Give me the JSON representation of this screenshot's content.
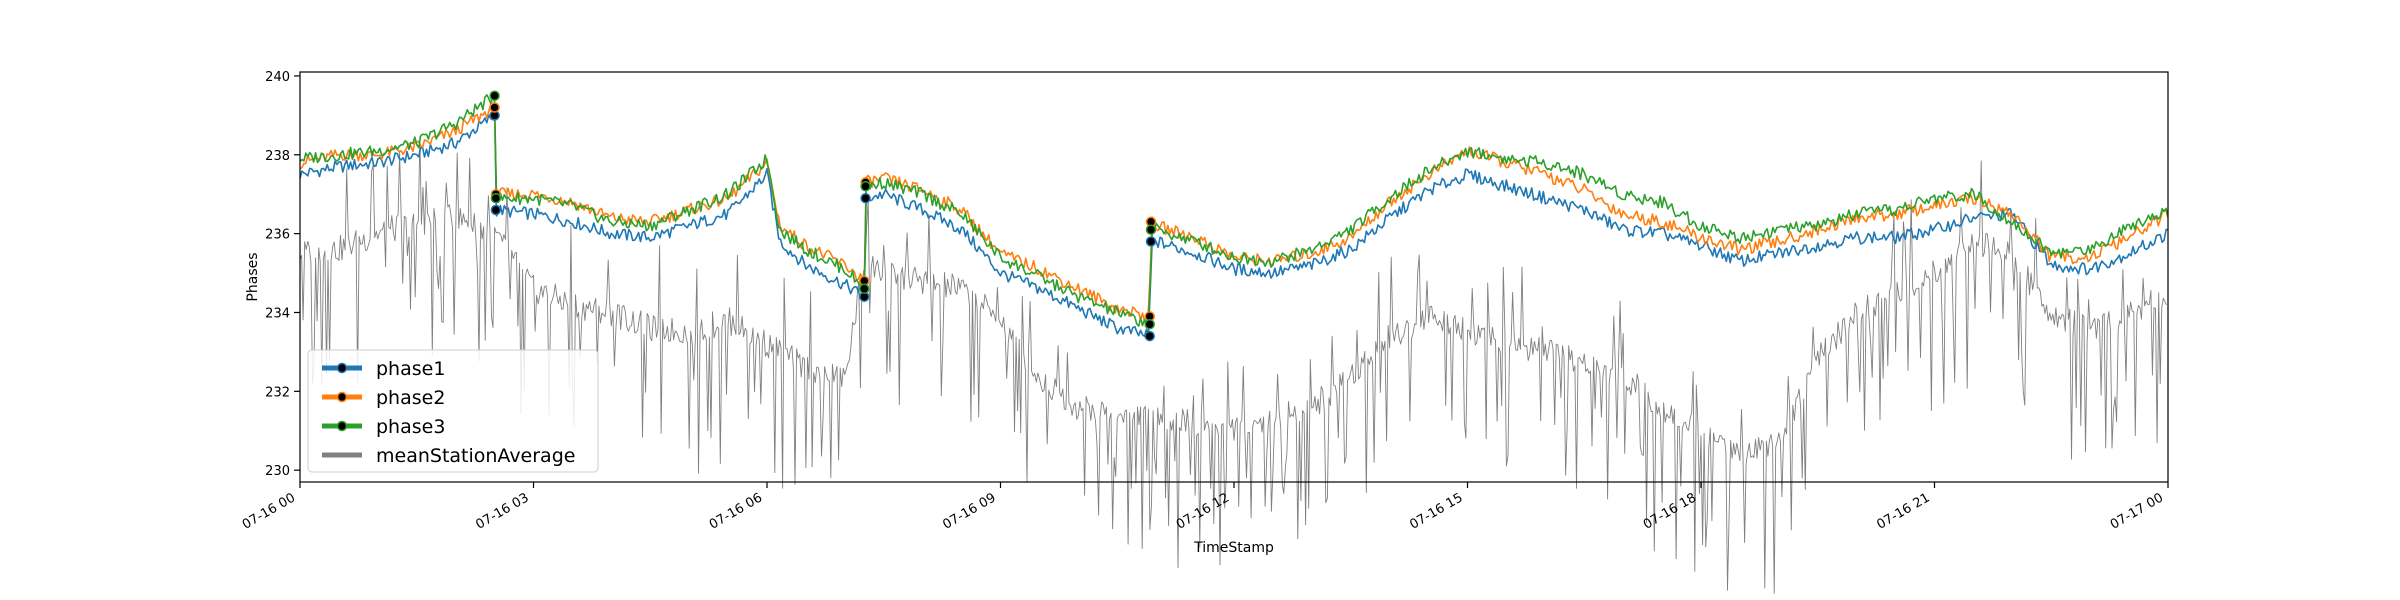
{
  "chart_data": {
    "type": "line",
    "title": "",
    "xlabel": "TimeStamp",
    "ylabel": "Phases",
    "xlim": [
      "07-16 00:00",
      "07-17 00:00"
    ],
    "ylim": [
      229.7,
      240.1
    ],
    "grid": false,
    "legend_position": "lower-left",
    "x_ticks": [
      "07-16 00",
      "07-16 03",
      "07-16 06",
      "07-16 09",
      "07-16 12",
      "07-16 15",
      "07-16 18",
      "07-16 21",
      "07-17 00"
    ],
    "y_ticks": [
      "230",
      "232",
      "234",
      "236",
      "238",
      "240"
    ],
    "series": [
      {
        "name": "phase1",
        "color": "#1f77b4",
        "x": [
          "07-16 00:00",
          "07-16 00:30",
          "07-16 01:00",
          "07-16 01:30",
          "07-16 02:00",
          "07-16 02:30",
          "07-16 02:31",
          "07-16 03:00",
          "07-16 03:30",
          "07-16 04:00",
          "07-16 04:30",
          "07-16 05:00",
          "07-16 05:30",
          "07-16 06:00",
          "07-16 06:10",
          "07-16 06:30",
          "07-16 07:00",
          "07-16 07:15",
          "07-16 07:16",
          "07-16 07:30",
          "07-16 08:00",
          "07-16 08:30",
          "07-16 09:00",
          "07-16 09:30",
          "07-16 10:00",
          "07-16 10:30",
          "07-16 10:55",
          "07-16 10:56",
          "07-16 11:00",
          "07-16 11:30",
          "07-16 12:00",
          "07-16 12:30",
          "07-16 13:00",
          "07-16 13:30",
          "07-16 14:00",
          "07-16 14:30",
          "07-16 15:00",
          "07-16 15:30",
          "07-16 16:00",
          "07-16 16:30",
          "07-16 17:00",
          "07-16 17:30",
          "07-16 18:00",
          "07-16 18:30",
          "07-16 19:00",
          "07-16 19:30",
          "07-16 20:00",
          "07-16 20:30",
          "07-16 21:00",
          "07-16 21:30",
          "07-16 22:00",
          "07-16 22:30",
          "07-16 23:00",
          "07-16 23:30",
          "07-17 00:00"
        ],
        "values": [
          237.5,
          237.7,
          237.8,
          238.0,
          238.3,
          239.0,
          236.6,
          236.5,
          236.3,
          236.0,
          235.9,
          236.2,
          236.5,
          237.5,
          235.8,
          235.2,
          234.7,
          234.4,
          236.9,
          237.0,
          236.6,
          236.1,
          235.0,
          234.6,
          234.1,
          233.6,
          233.4,
          235.8,
          235.8,
          235.5,
          235.1,
          235.0,
          235.2,
          235.6,
          236.4,
          237.1,
          237.5,
          237.2,
          236.9,
          236.6,
          236.1,
          236.0,
          235.7,
          235.3,
          235.5,
          235.7,
          235.9,
          235.9,
          236.1,
          236.4,
          236.5,
          235.2,
          235.1,
          235.5,
          236.0
        ]
      },
      {
        "name": "phase2",
        "color": "#ff7f0e",
        "x": [
          "07-16 00:00",
          "07-16 00:30",
          "07-16 01:00",
          "07-16 01:30",
          "07-16 02:00",
          "07-16 02:30",
          "07-16 02:31",
          "07-16 03:00",
          "07-16 03:30",
          "07-16 04:00",
          "07-16 04:30",
          "07-16 05:00",
          "07-16 05:30",
          "07-16 06:00",
          "07-16 06:10",
          "07-16 06:30",
          "07-16 07:00",
          "07-16 07:15",
          "07-16 07:16",
          "07-16 07:30",
          "07-16 08:00",
          "07-16 08:30",
          "07-16 09:00",
          "07-16 09:30",
          "07-16 10:00",
          "07-16 10:30",
          "07-16 10:55",
          "07-16 10:56",
          "07-16 11:00",
          "07-16 11:30",
          "07-16 12:00",
          "07-16 12:30",
          "07-16 13:00",
          "07-16 13:30",
          "07-16 14:00",
          "07-16 14:30",
          "07-16 15:00",
          "07-16 15:30",
          "07-16 16:00",
          "07-16 16:30",
          "07-16 17:00",
          "07-16 17:30",
          "07-16 18:00",
          "07-16 18:30",
          "07-16 19:00",
          "07-16 19:30",
          "07-16 20:00",
          "07-16 20:30",
          "07-16 21:00",
          "07-16 21:30",
          "07-16 22:00",
          "07-16 22:30",
          "07-16 23:00",
          "07-16 23:30",
          "07-17 00:00"
        ],
        "values": [
          237.8,
          238.0,
          238.0,
          238.2,
          238.6,
          239.2,
          237.0,
          237.0,
          236.8,
          236.4,
          236.3,
          236.6,
          236.9,
          237.8,
          236.2,
          235.7,
          235.2,
          234.8,
          237.3,
          237.4,
          237.1,
          236.6,
          235.5,
          235.1,
          234.6,
          234.1,
          233.9,
          236.3,
          236.2,
          235.9,
          235.4,
          235.3,
          235.5,
          235.9,
          236.8,
          237.5,
          238.1,
          237.8,
          237.5,
          237.1,
          236.5,
          236.3,
          235.9,
          235.6,
          235.8,
          236.1,
          236.4,
          236.5,
          236.7,
          236.9,
          236.5,
          235.4,
          235.4,
          235.9,
          236.5
        ]
      },
      {
        "name": "phase3",
        "color": "#2ca02c",
        "x": [
          "07-16 00:00",
          "07-16 00:30",
          "07-16 01:00",
          "07-16 01:30",
          "07-16 02:00",
          "07-16 02:30",
          "07-16 02:31",
          "07-16 03:00",
          "07-16 03:30",
          "07-16 04:00",
          "07-16 04:30",
          "07-16 05:00",
          "07-16 05:30",
          "07-16 06:00",
          "07-16 06:10",
          "07-16 06:30",
          "07-16 07:00",
          "07-16 07:15",
          "07-16 07:16",
          "07-16 07:30",
          "07-16 08:00",
          "07-16 08:30",
          "07-16 09:00",
          "07-16 09:30",
          "07-16 10:00",
          "07-16 10:30",
          "07-16 10:55",
          "07-16 10:56",
          "07-16 11:00",
          "07-16 11:30",
          "07-16 12:00",
          "07-16 12:30",
          "07-16 13:00",
          "07-16 13:30",
          "07-16 14:00",
          "07-16 14:30",
          "07-16 15:00",
          "07-16 15:30",
          "07-16 16:00",
          "07-16 16:30",
          "07-16 17:00",
          "07-16 17:30",
          "07-16 18:00",
          "07-16 18:30",
          "07-16 19:00",
          "07-16 19:30",
          "07-16 20:00",
          "07-16 20:30",
          "07-16 21:00",
          "07-16 21:30",
          "07-16 22:00",
          "07-16 22:30",
          "07-16 23:00",
          "07-16 23:30",
          "07-17 00:00"
        ],
        "values": [
          237.9,
          238.0,
          238.1,
          238.3,
          238.8,
          239.5,
          236.9,
          236.9,
          236.7,
          236.3,
          236.2,
          236.6,
          237.0,
          237.9,
          236.1,
          235.6,
          235.1,
          234.6,
          237.2,
          237.3,
          237.0,
          236.5,
          235.4,
          234.9,
          234.4,
          234.0,
          233.7,
          236.1,
          236.1,
          235.8,
          235.4,
          235.3,
          235.6,
          236.1,
          236.9,
          237.6,
          238.1,
          237.9,
          237.8,
          237.5,
          237.0,
          236.8,
          236.2,
          235.9,
          236.1,
          236.2,
          236.5,
          236.6,
          236.9,
          237.0,
          236.3,
          235.5,
          235.6,
          236.2,
          236.6
        ]
      },
      {
        "name": "meanStationAverage",
        "color": "#808080",
        "x": [
          "07-16 00:00",
          "07-16 00:30",
          "07-16 01:00",
          "07-16 01:30",
          "07-16 02:00",
          "07-16 02:30",
          "07-16 03:00",
          "07-16 03:30",
          "07-16 04:00",
          "07-16 04:30",
          "07-16 05:00",
          "07-16 05:30",
          "07-16 06:00",
          "07-16 06:30",
          "07-16 07:00",
          "07-16 07:15",
          "07-16 07:30",
          "07-16 08:00",
          "07-16 08:30",
          "07-16 09:00",
          "07-16 09:30",
          "07-16 10:00",
          "07-16 10:30",
          "07-16 11:00",
          "07-16 11:30",
          "07-16 12:00",
          "07-16 12:30",
          "07-16 13:00",
          "07-16 13:30",
          "07-16 14:00",
          "07-16 14:30",
          "07-16 15:00",
          "07-16 15:30",
          "07-16 16:00",
          "07-16 16:30",
          "07-16 17:00",
          "07-16 17:30",
          "07-16 18:00",
          "07-16 18:30",
          "07-16 19:00",
          "07-16 19:30",
          "07-16 20:00",
          "07-16 20:30",
          "07-16 21:00",
          "07-16 21:30",
          "07-16 22:00",
          "07-16 22:30",
          "07-16 23:00",
          "07-16 23:30",
          "07-17 00:00"
        ],
        "values": [
          235.5,
          235.6,
          236.0,
          236.3,
          236.4,
          236.0,
          234.6,
          234.2,
          234.0,
          233.6,
          233.5,
          233.8,
          233.2,
          232.6,
          232.3,
          235.3,
          235.0,
          234.8,
          234.6,
          233.8,
          232.3,
          231.6,
          231.5,
          231.3,
          231.2,
          231.1,
          231.3,
          231.6,
          232.4,
          233.4,
          233.9,
          233.6,
          233.2,
          233.0,
          232.7,
          232.4,
          231.6,
          231.0,
          230.4,
          230.8,
          232.8,
          234.0,
          234.5,
          235.0,
          235.8,
          235.4,
          234.0,
          233.5,
          234.0,
          234.4
        ]
      }
    ]
  }
}
